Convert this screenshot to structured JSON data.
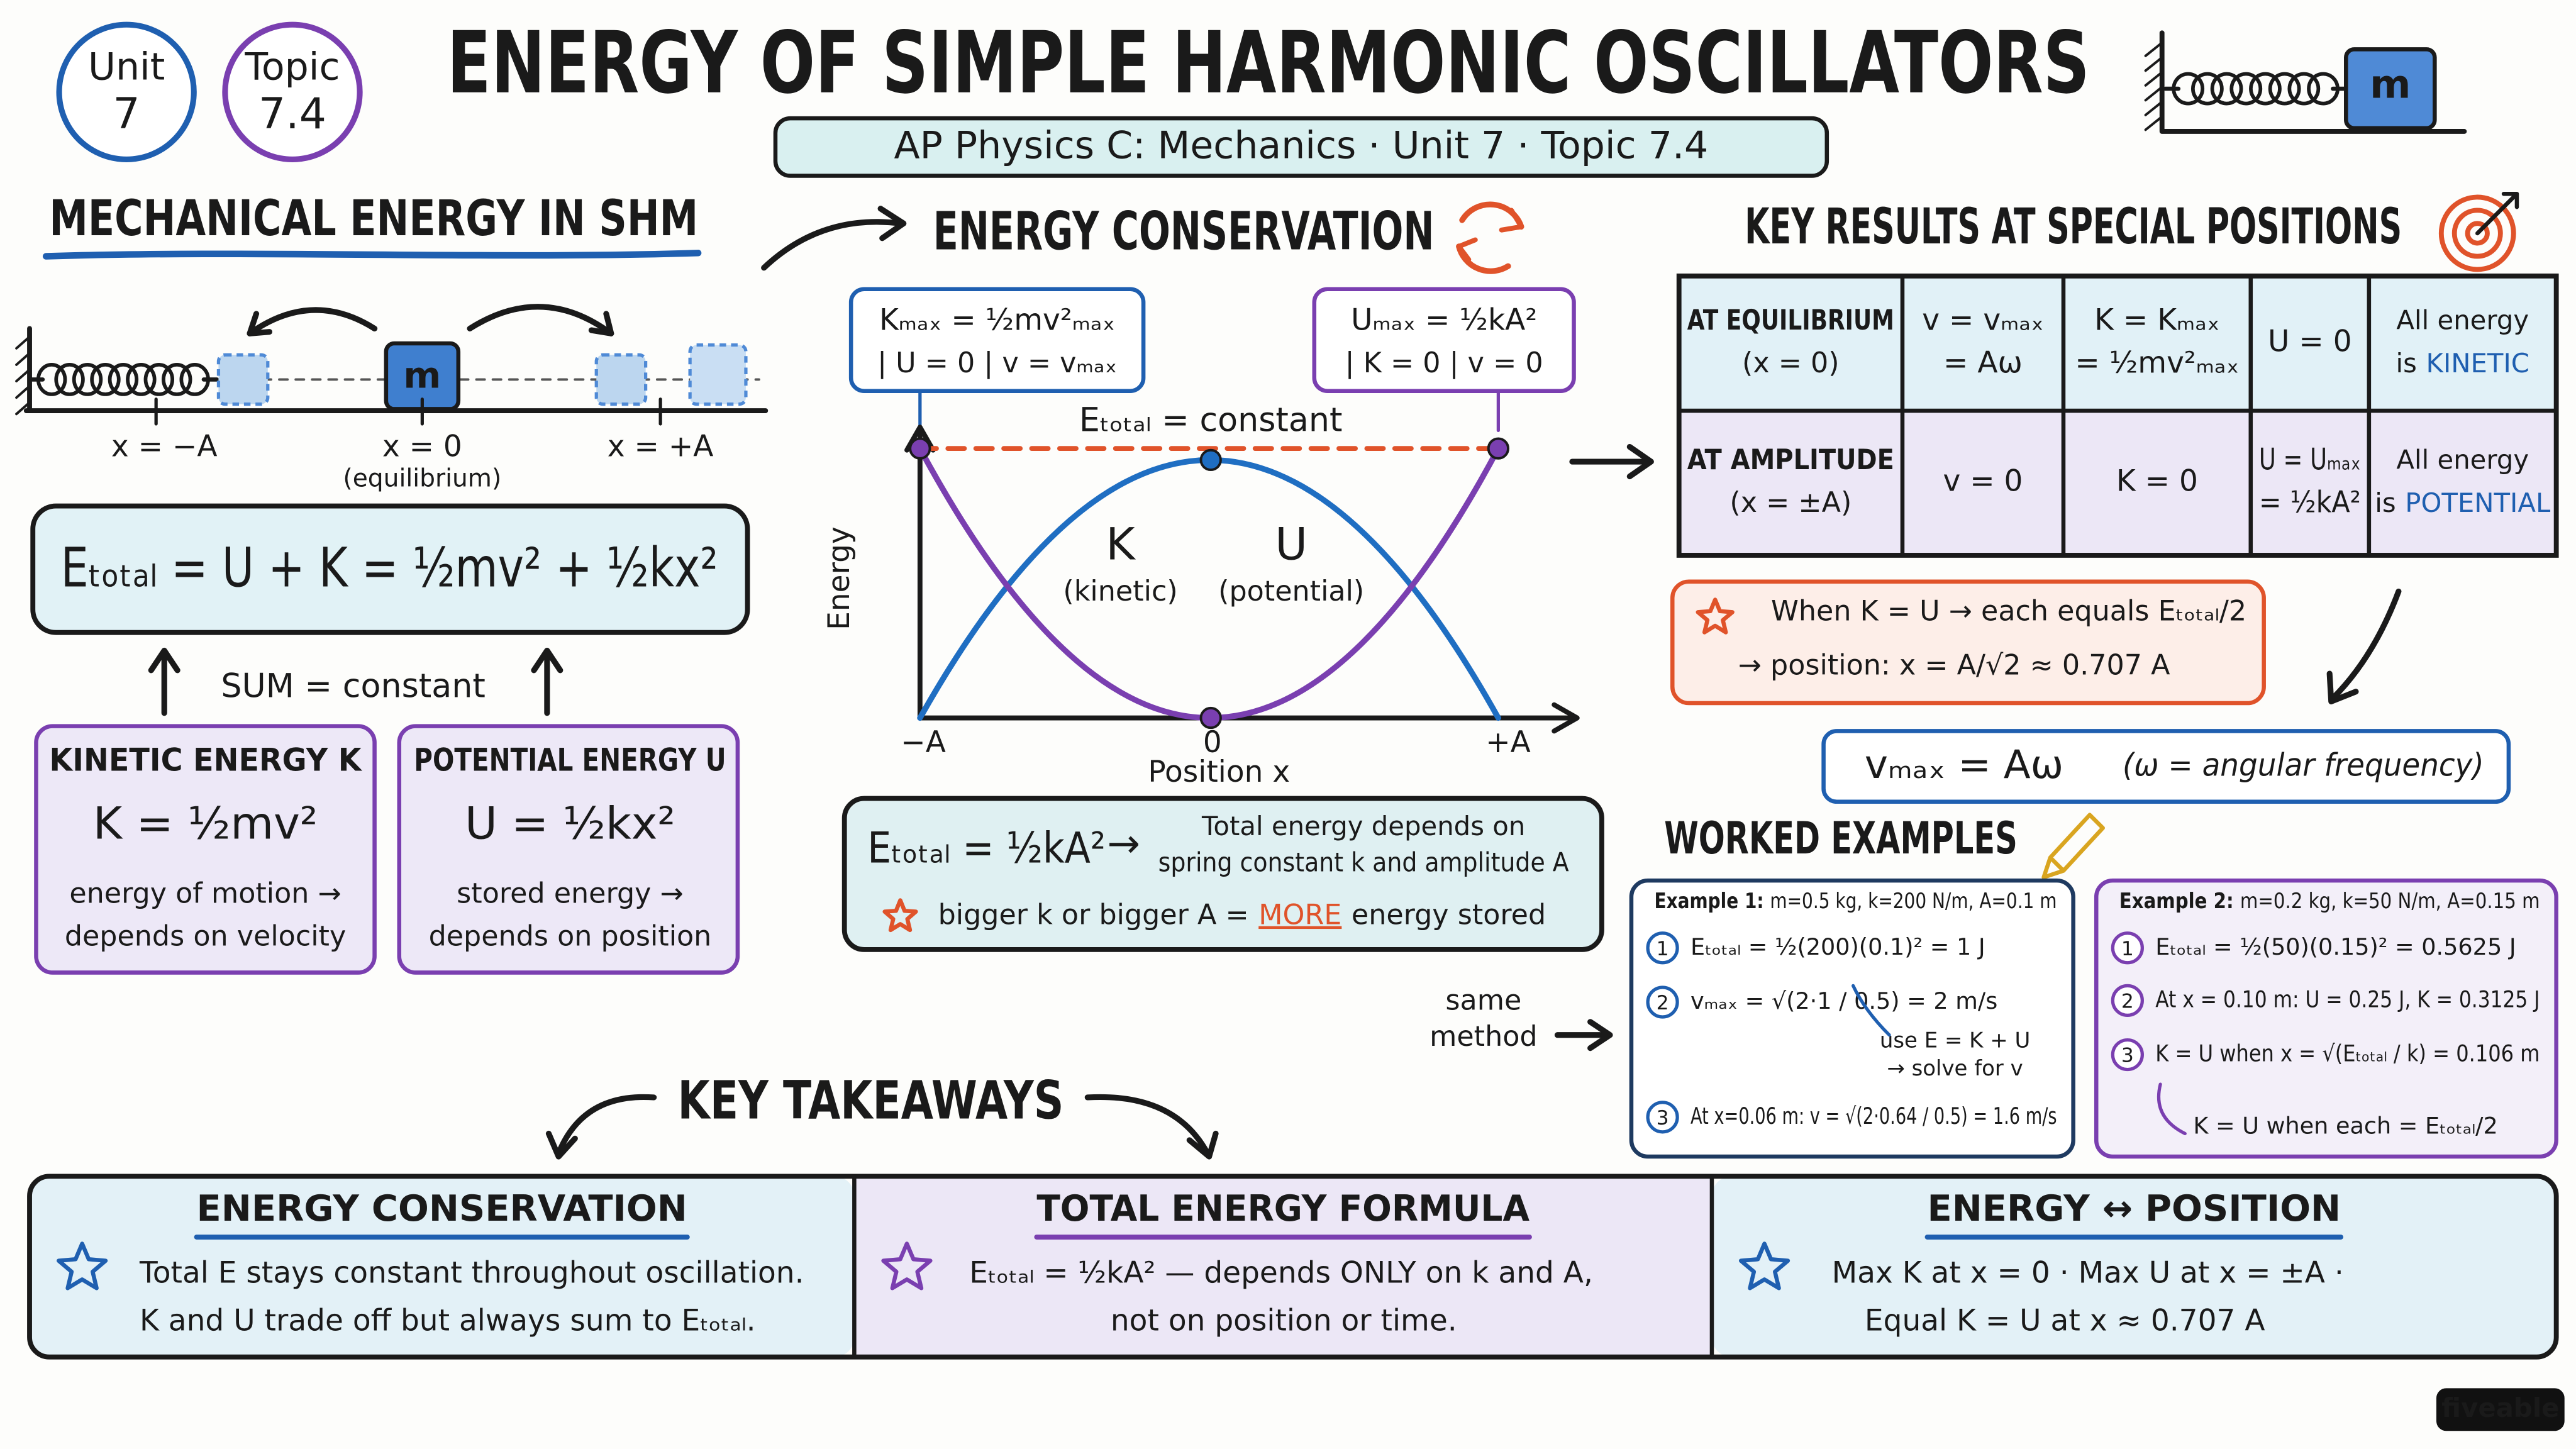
{
  "header": {
    "badges": [
      {
        "line1": "Unit",
        "line2": "7"
      },
      {
        "line1": "Topic",
        "line2": "7.4"
      }
    ],
    "title": "ENERGY OF SIMPLE HARMONIC OSCILLATORS",
    "subtitle": "AP Physics C: Mechanics · Unit 7 · Topic 7.4",
    "block_label": "m"
  },
  "mechanical": {
    "heading": "MECHANICAL ENERGY IN SHM",
    "block_label": "m",
    "positions": [
      "x = −A",
      "x = 0",
      "x = +A"
    ],
    "equilibrium_note": "(equilibrium)",
    "total_formula": "Eₜₒₜₐₗ = U + K = ½mv² + ½kx²",
    "sum_note": "SUM = constant",
    "cards": [
      {
        "title": "KINETIC ENERGY K",
        "formula": "K = ½mv²",
        "lines": [
          "energy of motion →",
          "depends on velocity"
        ]
      },
      {
        "title": "POTENTIAL ENERGY U",
        "formula": "U = ½kx²",
        "lines": [
          "stored energy →",
          "depends on position"
        ]
      }
    ]
  },
  "conservation": {
    "heading": "ENERGY CONSERVATION",
    "callouts": [
      {
        "formula": "Kₘₐₓ = ½mv²ₘₐₓ",
        "conditions": "| U = 0 |  v = vₘₐₓ"
      },
      {
        "formula": "Uₘₐₓ = ½kA²",
        "conditions": "| K = 0 |  v = 0"
      }
    ],
    "graph": {
      "y_label": "Energy",
      "x_label": "Position x",
      "x_ticks": [
        "−A",
        "0",
        "+A"
      ],
      "total_label": "Eₜₒₜₐₗ = constant",
      "curves": [
        {
          "symbol": "K",
          "name": "(kinetic)"
        },
        {
          "symbol": "U",
          "name": "(potential)"
        }
      ]
    },
    "summary": {
      "formula": "Eₜₒₜₐₗ = ½kA²",
      "arrow": "→",
      "lines": [
        "Total energy depends on",
        "spring constant k and amplitude A"
      ],
      "note": [
        "bigger k or bigger A =",
        "MORE",
        "energy stored"
      ]
    }
  },
  "key_results": {
    "heading": "KEY RESULTS AT SPECIAL POSITIONS",
    "rows": [
      {
        "position": [
          "AT EQUILIBRIUM",
          "(x = 0)"
        ],
        "velocity": [
          "v = vₘₐₓ",
          "= Aω"
        ],
        "kinetic": [
          "K = Kₘₐₓ",
          "= ½mv²ₘₐₓ"
        ],
        "potential": [
          "U = 0"
        ],
        "summary": [
          "All energy",
          "is",
          "KINETIC"
        ]
      },
      {
        "position": [
          "AT AMPLITUDE",
          "(x = ±A)"
        ],
        "velocity": [
          "v = 0"
        ],
        "kinetic": [
          "K = 0"
        ],
        "potential": [
          "U = Uₘₐₓ",
          "= ½kA²"
        ],
        "summary": [
          "All energy",
          "is",
          "POTENTIAL"
        ]
      }
    ]
  },
  "equal_split": {
    "lines": [
      "When K = U → each equals Eₜₒₜₐₗ/2",
      "→ position:  x = A/√2 ≈ 0.707 A"
    ]
  },
  "vmax": {
    "formula": "vₘₐₓ = Aω",
    "note": "(ω = angular frequency)"
  },
  "worked": {
    "heading": "WORKED EXAMPLES",
    "same_method": [
      "same",
      "method"
    ],
    "examples": [
      {
        "title": "Example 1:",
        "givens": "m=0.5 kg, k=200 N/m, A=0.1 m",
        "steps": [
          {
            "num": "1",
            "text": "Eₜₒₜₐₗ = ½(200)(0.1)² = 1 J"
          },
          {
            "num": "2",
            "text": "vₘₐₓ = √(2·1 / 0.5) = 2 m/s"
          },
          {
            "num": "3",
            "text": "At x=0.06 m: v = √(2·0.64 / 0.5) = 1.6 m/s"
          }
        ],
        "hint": [
          "use E = K + U",
          "→ solve for v"
        ]
      },
      {
        "title": "Example 2:",
        "givens": "m=0.2 kg, k=50 N/m, A=0.15 m",
        "steps": [
          {
            "num": "1",
            "text": "Eₜₒₜₐₗ = ½(50)(0.15)² = 0.5625 J"
          },
          {
            "num": "2",
            "text": "At x = 0.10 m:  U = 0.25 J, K = 0.3125 J"
          },
          {
            "num": "3",
            "text": "K = U when x = √(Eₜₒₜₐₗ / k) = 0.106 m"
          }
        ],
        "hint": [
          "K = U when each = Eₜₒₜₐₗ/2"
        ]
      }
    ]
  },
  "takeaways": {
    "heading": "KEY TAKEAWAYS",
    "panels": [
      {
        "title": "ENERGY CONSERVATION",
        "lines": [
          "Total E stays constant throughout oscillation.",
          "K and U trade off but always sum to Eₜₒₜₐₗ."
        ]
      },
      {
        "title": "TOTAL ENERGY FORMULA",
        "lines": [
          "Eₜₒₜₐₗ = ½kA²  — depends ONLY on k and A,",
          "not on position or time."
        ]
      },
      {
        "title": "ENERGY ↔ POSITION",
        "lines": [
          "Max K at x = 0  ·  Max U at x = ±A  ·",
          "Equal K = U  at  x ≈ 0.707 A"
        ]
      }
    ]
  },
  "brand": "fiveable"
}
